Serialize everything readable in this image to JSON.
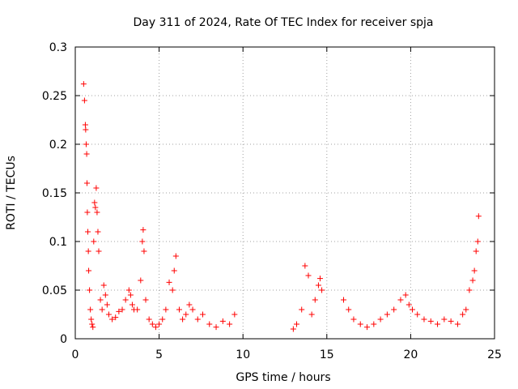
{
  "chart_data": {
    "type": "scatter",
    "title": "Day 311 of 2024, Rate Of TEC Index for receiver spja",
    "xlabel": "GPS time / hours",
    "ylabel": "ROTI / TECUs",
    "xlim": [
      0,
      25
    ],
    "ylim": [
      0,
      0.3
    ],
    "xticks": [
      0,
      5,
      10,
      15,
      20,
      25
    ],
    "xtick_labels": [
      "0",
      "5",
      "10",
      "15",
      "20",
      "25"
    ],
    "yticks": [
      0,
      0.05,
      0.1,
      0.15,
      0.2,
      0.25,
      0.3
    ],
    "ytick_labels": [
      "0",
      "0.05",
      "0.1",
      "0.15",
      "0.2",
      "0.25",
      "0.3"
    ],
    "grid": true,
    "marker": "plus",
    "color": "#ff0000",
    "series": [
      {
        "x": [
          0.5,
          0.55,
          0.6,
          0.62,
          0.65,
          0.68,
          0.7,
          0.72,
          0.75,
          0.78,
          0.8,
          0.85,
          0.9,
          0.95,
          1.0,
          1.05,
          1.1,
          1.15,
          1.2,
          1.25,
          1.3,
          1.35,
          1.4,
          1.5,
          1.6,
          1.7,
          1.8,
          1.9,
          2.0,
          2.2,
          2.4,
          2.6,
          2.8,
          3.0,
          3.2,
          3.3,
          3.4,
          3.5,
          3.7,
          3.9,
          4.0,
          4.05,
          4.1,
          4.2,
          4.4,
          4.6,
          4.8,
          5.0,
          5.2,
          5.4,
          5.6,
          5.8,
          5.9,
          6.0,
          6.2,
          6.4,
          6.6,
          6.8,
          7.0,
          7.3,
          7.6,
          8.0,
          8.4,
          8.8,
          9.2,
          9.5,
          13.0,
          13.2,
          13.5,
          13.7,
          13.9,
          14.1,
          14.3,
          14.5,
          14.6,
          14.7,
          16.0,
          16.3,
          16.6,
          17.0,
          17.4,
          17.8,
          18.2,
          18.6,
          19.0,
          19.4,
          19.7,
          19.9,
          20.1,
          20.4,
          20.8,
          21.2,
          21.6,
          22.0,
          22.4,
          22.8,
          23.1,
          23.3,
          23.5,
          23.7,
          23.8,
          23.9,
          24.0,
          24.05
        ],
        "y": [
          0.262,
          0.245,
          0.22,
          0.215,
          0.2,
          0.19,
          0.16,
          0.13,
          0.11,
          0.09,
          0.07,
          0.05,
          0.03,
          0.02,
          0.015,
          0.012,
          0.1,
          0.14,
          0.135,
          0.155,
          0.13,
          0.11,
          0.09,
          0.04,
          0.03,
          0.055,
          0.045,
          0.035,
          0.025,
          0.02,
          0.022,
          0.028,
          0.03,
          0.04,
          0.05,
          0.045,
          0.035,
          0.03,
          0.03,
          0.06,
          0.1,
          0.112,
          0.09,
          0.04,
          0.02,
          0.015,
          0.012,
          0.015,
          0.02,
          0.03,
          0.058,
          0.05,
          0.07,
          0.085,
          0.03,
          0.02,
          0.025,
          0.035,
          0.03,
          0.02,
          0.025,
          0.015,
          0.012,
          0.018,
          0.015,
          0.025,
          0.01,
          0.015,
          0.03,
          0.075,
          0.065,
          0.025,
          0.04,
          0.055,
          0.062,
          0.05,
          0.04,
          0.03,
          0.02,
          0.015,
          0.012,
          0.015,
          0.02,
          0.025,
          0.03,
          0.04,
          0.045,
          0.035,
          0.03,
          0.025,
          0.02,
          0.018,
          0.015,
          0.02,
          0.018,
          0.015,
          0.025,
          0.03,
          0.05,
          0.06,
          0.07,
          0.09,
          0.1,
          0.126
        ]
      }
    ]
  }
}
